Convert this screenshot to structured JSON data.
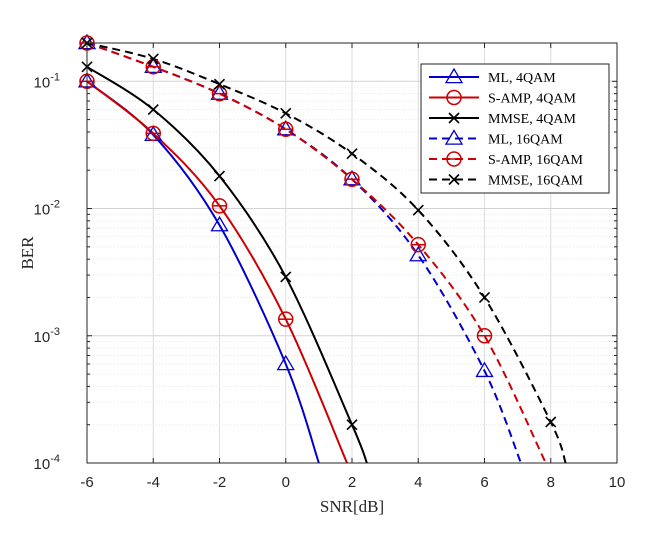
{
  "chart_data": {
    "type": "line",
    "title": "",
    "xlabel": "SNR[dB]",
    "ylabel": "BER",
    "xlim": [
      -6,
      10
    ],
    "ylim": [
      0.0001,
      0.2
    ],
    "yscale": "log",
    "grid": true,
    "legend_position": "top-right",
    "x_ticks": [
      -6,
      -4,
      -2,
      0,
      2,
      4,
      6,
      8,
      10
    ],
    "x_tick_labels": [
      "-6",
      "-4",
      "-2",
      "0",
      "2",
      "4",
      "6",
      "8",
      "10"
    ],
    "y_ticks": [
      0.0001,
      0.001,
      0.01,
      0.1
    ],
    "y_tick_labels": [
      {
        "base": "10",
        "exp": "-4"
      },
      {
        "base": "10",
        "exp": "-3"
      },
      {
        "base": "10",
        "exp": "-2"
      },
      {
        "base": "10",
        "exp": "-1"
      }
    ],
    "series": [
      {
        "name": "ML, 4QAM",
        "color": "#0000cc",
        "dash": "solid",
        "marker": "triangle",
        "x": [
          -6,
          -4,
          -2,
          0,
          1
        ],
        "y": [
          0.1,
          0.038,
          0.0074,
          0.0006,
          0.0001
        ]
      },
      {
        "name": "S-AMP, 4QAM",
        "color": "#cc0000",
        "dash": "solid",
        "marker": "circle",
        "x": [
          -6,
          -4,
          -2,
          0,
          1.85
        ],
        "y": [
          0.1,
          0.039,
          0.0105,
          0.00135,
          0.0001
        ]
      },
      {
        "name": "MMSE, 4QAM",
        "color": "#000000",
        "dash": "solid",
        "marker": "x",
        "x": [
          -6,
          -4,
          -2,
          0,
          2,
          2.45
        ],
        "y": [
          0.13,
          0.06,
          0.018,
          0.0029,
          0.0002,
          0.0001
        ]
      },
      {
        "name": "ML, 16QAM",
        "color": "#0000cc",
        "dash": "dashed",
        "marker": "triangle",
        "x": [
          -6,
          -4,
          -2,
          0,
          2,
          4,
          6,
          7.1
        ],
        "y": [
          0.2,
          0.13,
          0.08,
          0.042,
          0.017,
          0.0043,
          0.00053,
          0.0001
        ]
      },
      {
        "name": "S-AMP, 16QAM",
        "color": "#cc0000",
        "dash": "dashed",
        "marker": "circle",
        "x": [
          -6,
          -4,
          -2,
          0,
          2,
          4,
          6,
          7.85
        ],
        "y": [
          0.2,
          0.13,
          0.08,
          0.042,
          0.017,
          0.0052,
          0.001,
          0.0001
        ]
      },
      {
        "name": "MMSE, 16QAM",
        "color": "#000000",
        "dash": "dashed",
        "marker": "x",
        "x": [
          -6,
          -4,
          -2,
          0,
          2,
          4,
          6,
          8,
          8.45
        ],
        "y": [
          0.2,
          0.15,
          0.095,
          0.056,
          0.027,
          0.0097,
          0.002,
          0.00021,
          0.0001
        ]
      }
    ]
  }
}
